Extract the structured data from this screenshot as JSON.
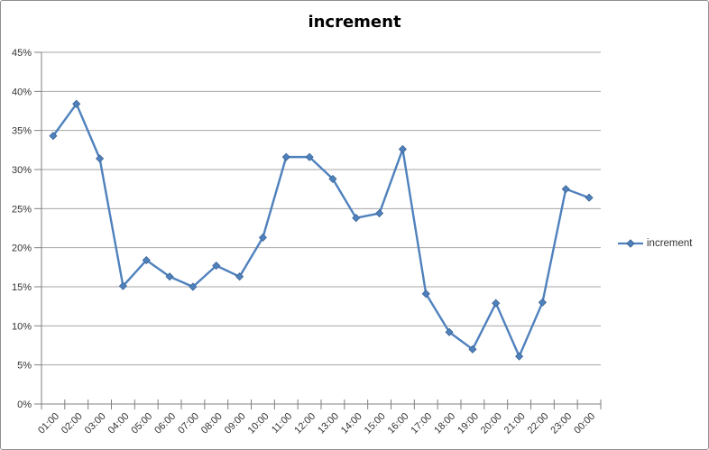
{
  "window": {
    "background": "#ffffff",
    "border_color": "#8f8f8f"
  },
  "chart_data": {
    "type": "line",
    "title": "increment",
    "categories": [
      "01:00",
      "02:00",
      "03:00",
      "04:00",
      "05:00",
      "06:00",
      "07:00",
      "08:00",
      "09:00",
      "10:00",
      "11:00",
      "12:00",
      "13:00",
      "14:00",
      "15:00",
      "16:00",
      "17:00",
      "18:00",
      "19:00",
      "20:00",
      "21:00",
      "22:00",
      "23:00",
      "00:00"
    ],
    "series": [
      {
        "name": "increment",
        "color": "#4f81bd",
        "marker": "diamond",
        "marker_border_color": "#3a6494",
        "values": [
          34.3,
          38.4,
          31.4,
          15.1,
          18.4,
          16.3,
          15.0,
          17.7,
          16.3,
          21.3,
          31.6,
          31.6,
          28.8,
          23.8,
          24.4,
          32.6,
          14.1,
          9.2,
          7.0,
          12.9,
          6.1,
          13.0,
          27.5,
          26.4
        ]
      }
    ],
    "y_axis": {
      "min": 0,
      "max": 45,
      "step": 5,
      "tick_labels": [
        "0%",
        "5%",
        "10%",
        "15%",
        "20%",
        "25%",
        "30%",
        "35%",
        "40%",
        "45%"
      ]
    },
    "x_axis": {
      "label_rotation_deg": -45
    },
    "grid": true,
    "gridline_color": "#a6a6a6",
    "axis_color": "#808080",
    "legend_position": "right"
  }
}
